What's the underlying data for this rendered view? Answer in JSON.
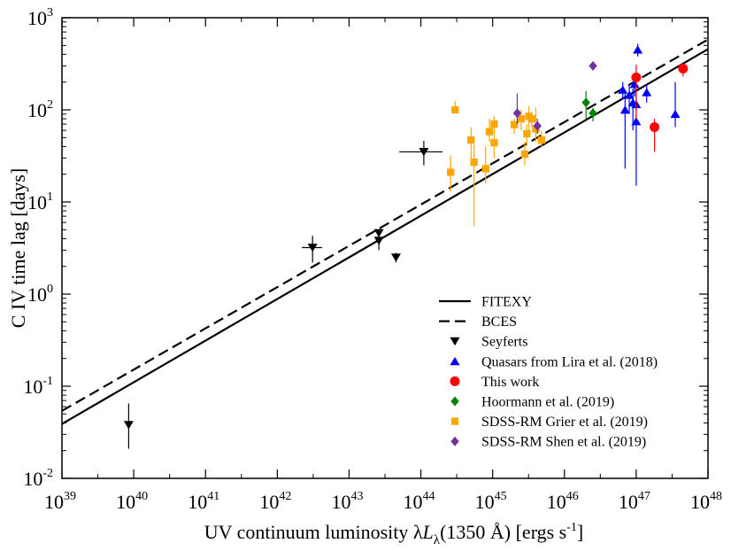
{
  "chart_data": {
    "type": "scatter",
    "xlabel": "UV continuum luminosity λLλ(1350 Å)  [ergs s-1]",
    "ylabel": "C IV time lag [days]",
    "x_scale": "log",
    "y_scale": "log",
    "xlim": [
      1e+39,
      1e+48
    ],
    "ylim": [
      0.01,
      1000
    ],
    "grid": false,
    "legend_position": "bottom-right",
    "x_ticks": [
      {
        "base": "10",
        "exp": "39"
      },
      {
        "base": "10",
        "exp": "40"
      },
      {
        "base": "10",
        "exp": "41"
      },
      {
        "base": "10",
        "exp": "42"
      },
      {
        "base": "10",
        "exp": "43"
      },
      {
        "base": "10",
        "exp": "44"
      },
      {
        "base": "10",
        "exp": "45"
      },
      {
        "base": "10",
        "exp": "46"
      },
      {
        "base": "10",
        "exp": "47"
      },
      {
        "base": "10",
        "exp": "48"
      }
    ],
    "y_ticks": [
      {
        "base": "10",
        "exp": "-2"
      },
      {
        "base": "10",
        "exp": "-1"
      },
      {
        "base": "10",
        "exp": "0"
      },
      {
        "base": "10",
        "exp": "1"
      },
      {
        "base": "10",
        "exp": "2"
      },
      {
        "base": "10",
        "exp": "3"
      }
    ],
    "fits": [
      {
        "name": "FITEXY",
        "style": "solid",
        "x": [
          1e+39,
          1e+48
        ],
        "y": [
          0.039,
          456
        ]
      },
      {
        "name": "BCES",
        "style": "dashed",
        "x": [
          1e+39,
          1e+48
        ],
        "y": [
          0.054,
          580
        ]
      }
    ],
    "series": [
      {
        "name": "Seyferts",
        "marker": "triangle-down",
        "color": "#000000",
        "points": [
          {
            "x": 8.5e+39,
            "y": 0.038,
            "ylo": 0.021,
            "yhi": 0.065
          },
          {
            "x": 3.1e+42,
            "y": 3.2,
            "ylo": 2.2,
            "yhi": 4.3,
            "xlo": 2.2e+42,
            "xhi": 4.2e+42
          },
          {
            "x": 2.6e+43,
            "y": 4.6
          },
          {
            "x": 2.6e+43,
            "y": 3.8,
            "ylo": 3.0,
            "yhi": 5.0
          },
          {
            "x": 4.5e+43,
            "y": 2.5,
            "ylo": 2.2,
            "yhi": 2.8
          },
          {
            "x": 1.1e+44,
            "y": 35,
            "ylo": 25,
            "yhi": 46,
            "xlo": 5e+43,
            "xhi": 2e+44
          }
        ]
      },
      {
        "name": "Quasars from Lira et al. (2018)",
        "marker": "triangle-up",
        "color": "#0000ff",
        "points": [
          {
            "x": 6.5e+46,
            "y": 165,
            "ylo": 130,
            "yhi": 200
          },
          {
            "x": 7e+46,
            "y": 100,
            "ylo": 23,
            "yhi": 150
          },
          {
            "x": 8e+46,
            "y": 145,
            "ylo": 90,
            "yhi": 190
          },
          {
            "x": 9e+46,
            "y": 120,
            "ylo": 60,
            "yhi": 170
          },
          {
            "x": 1e+47,
            "y": 75,
            "ylo": 15,
            "yhi": 170
          },
          {
            "x": 9.5e+46,
            "y": 190,
            "ylo": 140,
            "yhi": 240
          },
          {
            "x": 1.05e+47,
            "y": 450,
            "ylo": 380,
            "yhi": 520
          },
          {
            "x": 1.4e+47,
            "y": 155,
            "ylo": 120,
            "yhi": 190
          },
          {
            "x": 3.5e+47,
            "y": 90,
            "ylo": 65,
            "yhi": 200
          },
          {
            "x": 1e+47,
            "y": 115,
            "ylo": 100,
            "yhi": 130
          }
        ]
      },
      {
        "name": "This work",
        "marker": "circle",
        "color": "#ff0000",
        "points": [
          {
            "x": 1e+47,
            "y": 225,
            "ylo": 80,
            "yhi": 310
          },
          {
            "x": 1.8e+47,
            "y": 65,
            "ylo": 35,
            "yhi": 80
          },
          {
            "x": 4.5e+47,
            "y": 280,
            "ylo": 230,
            "yhi": 320
          }
        ]
      },
      {
        "name": "Hoormann et al. (2019)",
        "marker": "diamond",
        "color": "#008000",
        "points": [
          {
            "x": 2e+46,
            "y": 120,
            "ylo": 80,
            "yhi": 160
          },
          {
            "x": 2.5e+46,
            "y": 92,
            "ylo": 75,
            "yhi": 105
          }
        ]
      },
      {
        "name": "SDSS-RM Grier et al. (2019)",
        "marker": "square",
        "color": "#ffa500",
        "points": [
          {
            "x": 2.6e+44,
            "y": 21,
            "ylo": 13,
            "yhi": 32
          },
          {
            "x": 3e+44,
            "y": 100,
            "ylo": 92,
            "yhi": 125
          },
          {
            "x": 5e+44,
            "y": 47,
            "ylo": 25,
            "yhi": 65
          },
          {
            "x": 5.5e+44,
            "y": 27,
            "ylo": 5.5,
            "yhi": 42
          },
          {
            "x": 8e+44,
            "y": 23,
            "ylo": 16,
            "yhi": 40
          },
          {
            "x": 9e+44,
            "y": 58,
            "ylo": 45,
            "yhi": 80
          },
          {
            "x": 1.05e+45,
            "y": 70,
            "ylo": 55,
            "yhi": 85
          },
          {
            "x": 1.05e+45,
            "y": 44,
            "ylo": 30,
            "yhi": 60
          },
          {
            "x": 2e+45,
            "y": 69,
            "ylo": 55,
            "yhi": 80
          },
          {
            "x": 2.5e+45,
            "y": 80,
            "ylo": 60,
            "yhi": 100
          },
          {
            "x": 2.8e+45,
            "y": 33,
            "ylo": 25,
            "yhi": 45
          },
          {
            "x": 3e+45,
            "y": 55,
            "ylo": 40,
            "yhi": 70
          },
          {
            "x": 3.2e+45,
            "y": 85,
            "ylo": 60,
            "yhi": 110
          },
          {
            "x": 3.5e+45,
            "y": 80,
            "ylo": 65,
            "yhi": 95
          },
          {
            "x": 4e+45,
            "y": 62,
            "ylo": 45,
            "yhi": 105
          },
          {
            "x": 4.8e+45,
            "y": 47,
            "ylo": 40,
            "yhi": 58
          }
        ]
      },
      {
        "name": "SDSS-RM Shen et al. (2019)",
        "marker": "diamond",
        "color": "#7030a0",
        "points": [
          {
            "x": 2.2e+45,
            "y": 92,
            "ylo": 70,
            "yhi": 150
          },
          {
            "x": 4.2e+45,
            "y": 67,
            "ylo": 55,
            "yhi": 80
          },
          {
            "x": 2.5e+46,
            "y": 300
          }
        ]
      }
    ],
    "legend": [
      {
        "label": "FITEXY",
        "kind": "line",
        "style": "solid"
      },
      {
        "label": "BCES",
        "kind": "line",
        "style": "dashed"
      },
      {
        "label": "Seyferts",
        "kind": "marker",
        "marker": "triangle-down",
        "color": "#000000"
      },
      {
        "label": "Quasars from Lira et al. (2018)",
        "kind": "marker",
        "marker": "triangle-up",
        "color": "#0000ff"
      },
      {
        "label": "This work",
        "kind": "marker",
        "marker": "circle",
        "color": "#ff0000"
      },
      {
        "label": "Hoormann et al. (2019)",
        "kind": "marker",
        "marker": "diamond",
        "color": "#008000"
      },
      {
        "label": "SDSS-RM Grier et al. (2019)",
        "kind": "marker",
        "marker": "square",
        "color": "#ffa500"
      },
      {
        "label": "SDSS-RM Shen et al. (2019)",
        "kind": "marker",
        "marker": "diamond",
        "color": "#7030a0"
      }
    ]
  }
}
